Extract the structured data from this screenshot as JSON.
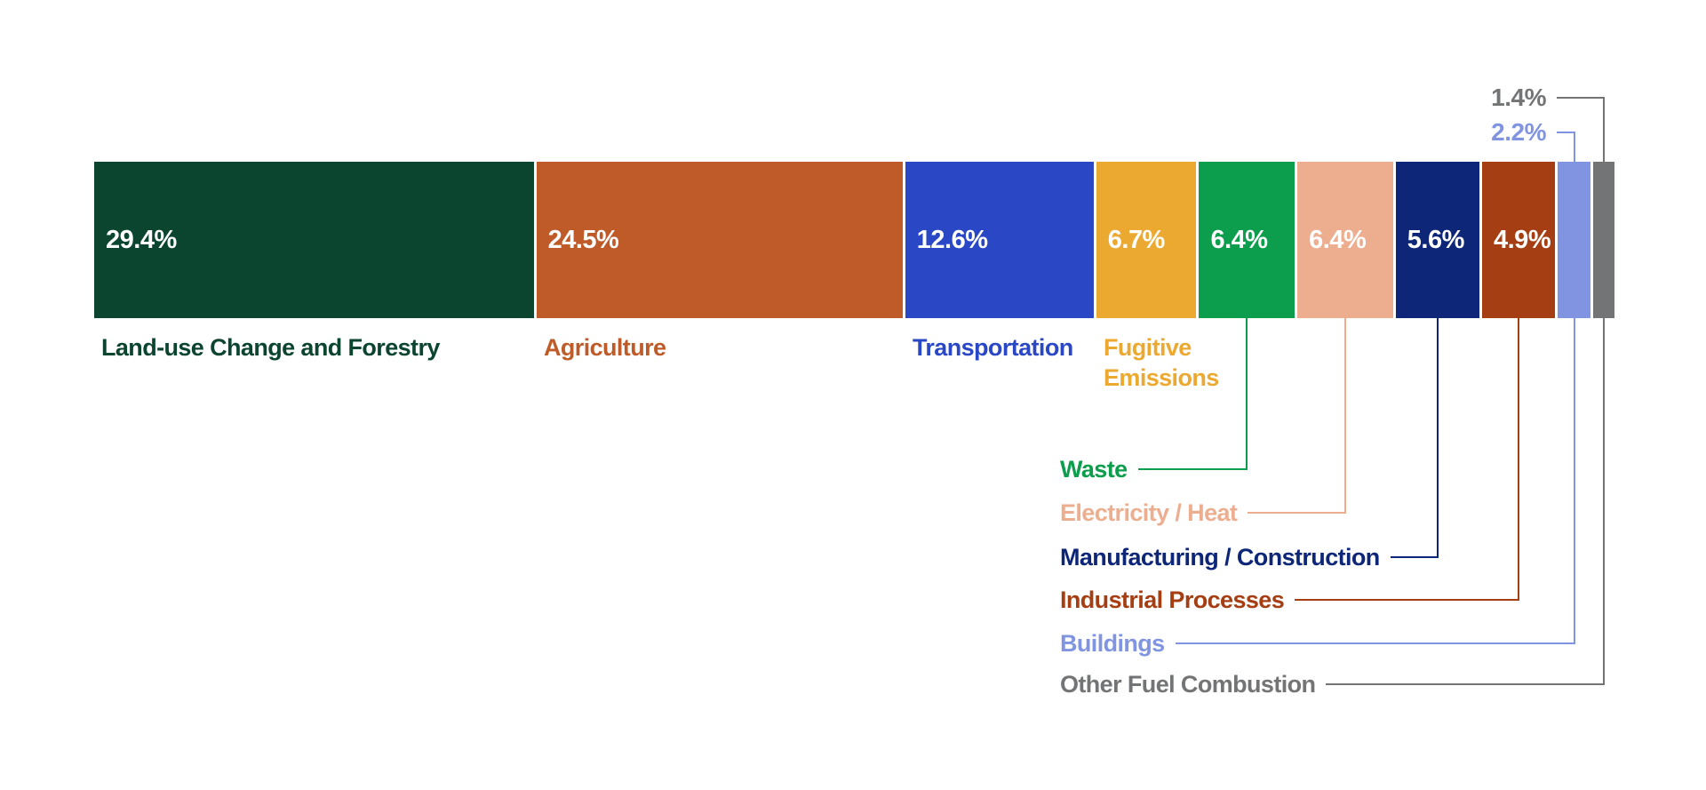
{
  "chart_data": {
    "type": "bar",
    "subtype": "horizontal-stacked-single-bar",
    "title": "",
    "unit": "%",
    "orientation": "horizontal",
    "legend_position": "none",
    "grid": false,
    "background_color": "#ffffff",
    "value_text_color": "#ffffff",
    "segments": [
      {
        "name": "Land-use Change and Forestry",
        "value": 29.4,
        "display_value": "29.4%",
        "color": "#0B4530",
        "value_inside": true,
        "name_label_position": "below-bar",
        "value_label_position": "inside"
      },
      {
        "name": "Agriculture",
        "value": 24.5,
        "display_value": "24.5%",
        "color": "#BF5B28",
        "value_inside": true,
        "name_label_position": "below-bar",
        "value_label_position": "inside"
      },
      {
        "name": "Transportation",
        "value": 12.6,
        "display_value": "12.6%",
        "color": "#2A48C6",
        "value_inside": true,
        "name_label_position": "below-bar",
        "value_label_position": "inside"
      },
      {
        "name": "Fugitive Emissions",
        "value": 6.7,
        "display_value": "6.7%",
        "color": "#ECA931",
        "value_inside": true,
        "name_label_position": "below-bar",
        "value_label_position": "inside"
      },
      {
        "name": "Waste",
        "value": 6.4,
        "display_value": "6.4%",
        "color": "#0C9D4D",
        "value_inside": true,
        "name_label_position": "callout-below",
        "value_label_position": "inside"
      },
      {
        "name": "Electricity / Heat",
        "value": 6.4,
        "display_value": "6.4%",
        "color": "#EDAE90",
        "value_inside": true,
        "name_label_position": "callout-below",
        "value_label_position": "inside"
      },
      {
        "name": "Manufacturing / Construction",
        "value": 5.6,
        "display_value": "5.6%",
        "color": "#0D2678",
        "value_inside": true,
        "name_label_position": "callout-below",
        "value_label_position": "inside"
      },
      {
        "name": "Industrial Processes",
        "value": 4.9,
        "display_value": "4.9%",
        "color": "#A63E13",
        "value_inside": true,
        "name_label_position": "callout-below",
        "value_label_position": "inside"
      },
      {
        "name": "Buildings",
        "value": 2.2,
        "display_value": "2.2%",
        "color": "#8194E1",
        "value_inside": false,
        "name_label_position": "callout-below",
        "value_label_position": "above-bar"
      },
      {
        "name": "Other Fuel Combustion",
        "value": 1.4,
        "display_value": "1.4%",
        "color": "#727476",
        "value_inside": false,
        "name_label_position": "callout-below",
        "value_label_position": "above-bar",
        "pattern": "dots"
      }
    ]
  }
}
